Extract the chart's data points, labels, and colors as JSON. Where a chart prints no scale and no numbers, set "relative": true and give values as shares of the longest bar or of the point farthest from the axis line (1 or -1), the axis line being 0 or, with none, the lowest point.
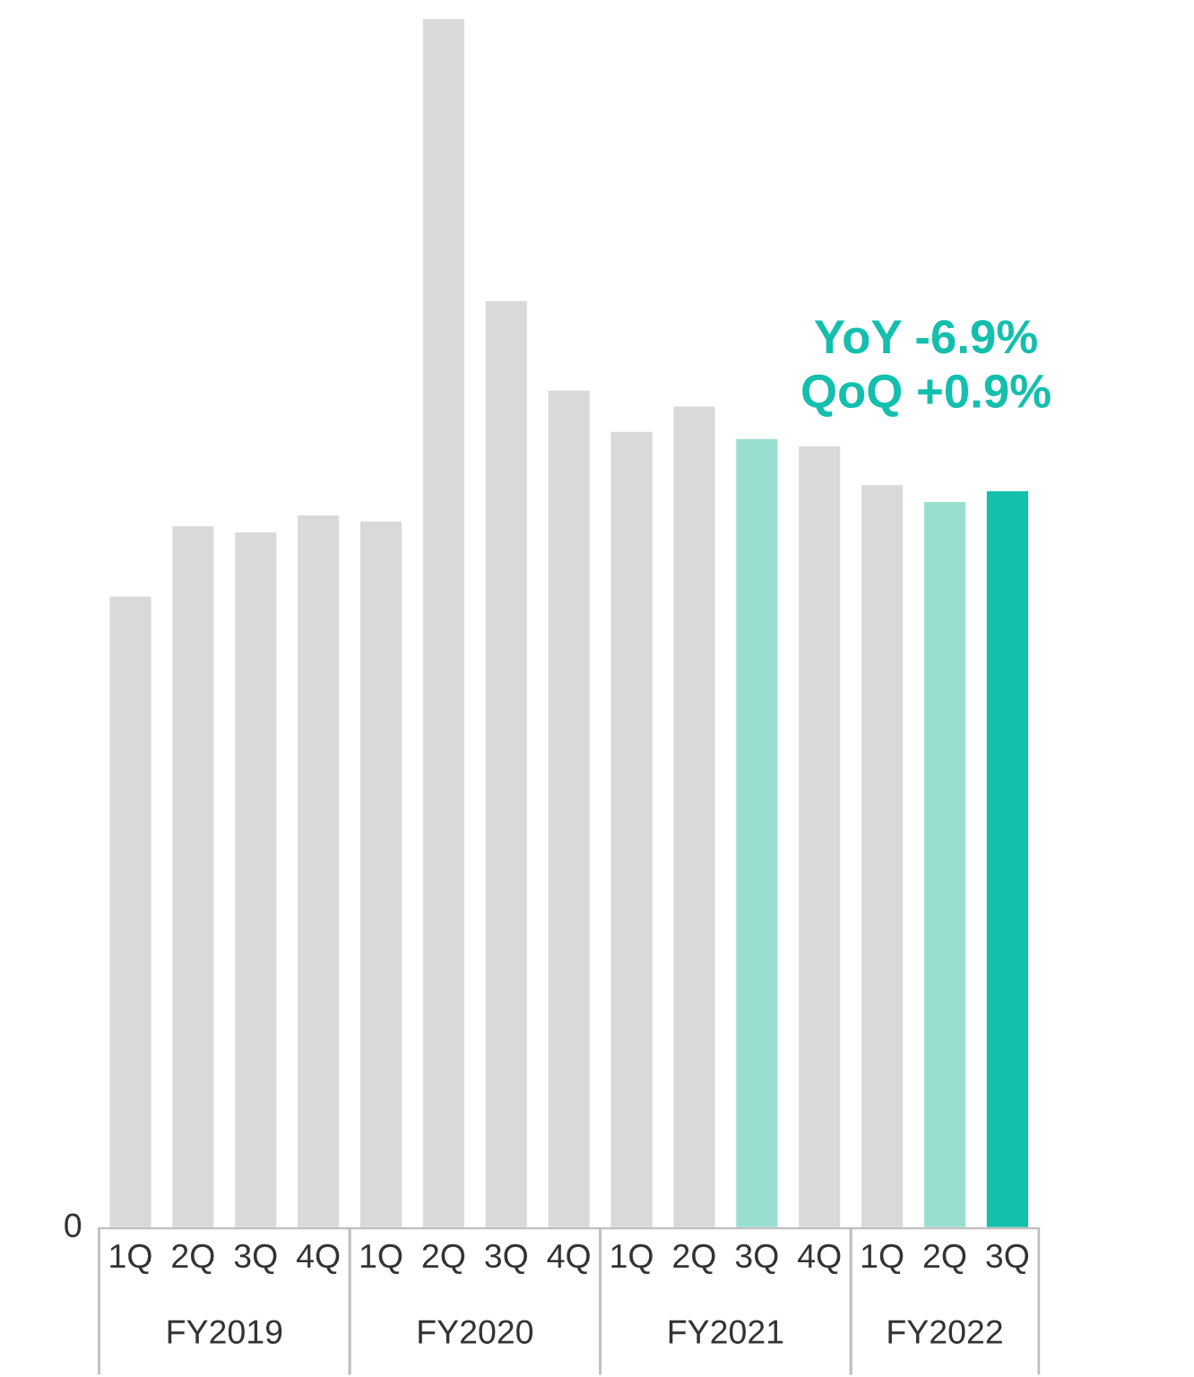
{
  "chart_data": {
    "type": "bar",
    "relative": true,
    "categories": [
      "1Q",
      "2Q",
      "3Q",
      "4Q",
      "1Q",
      "2Q",
      "3Q",
      "4Q",
      "1Q",
      "2Q",
      "3Q",
      "4Q",
      "1Q",
      "2Q",
      "3Q"
    ],
    "values": [
      0.523,
      0.581,
      0.576,
      0.59,
      0.585,
      1,
      0.767,
      0.693,
      0.659,
      0.68,
      0.653,
      0.647,
      0.615,
      0.601,
      0.61
    ],
    "colors": [
      "#d9d9d9",
      "#d9d9d9",
      "#d9d9d9",
      "#d9d9d9",
      "#d9d9d9",
      "#d9d9d9",
      "#d9d9d9",
      "#d9d9d9",
      "#d9d9d9",
      "#d9d9d9",
      "#99dfd0",
      "#d9d9d9",
      "#d9d9d9",
      "#99dfd0",
      "#13bfad"
    ],
    "annotations": [
      "YoY -6.9%\nQoQ +0.9%",
      "FY2019",
      "FY2020",
      "FY2021",
      "FY2022",
      "0"
    ],
    "grid": false
  }
}
